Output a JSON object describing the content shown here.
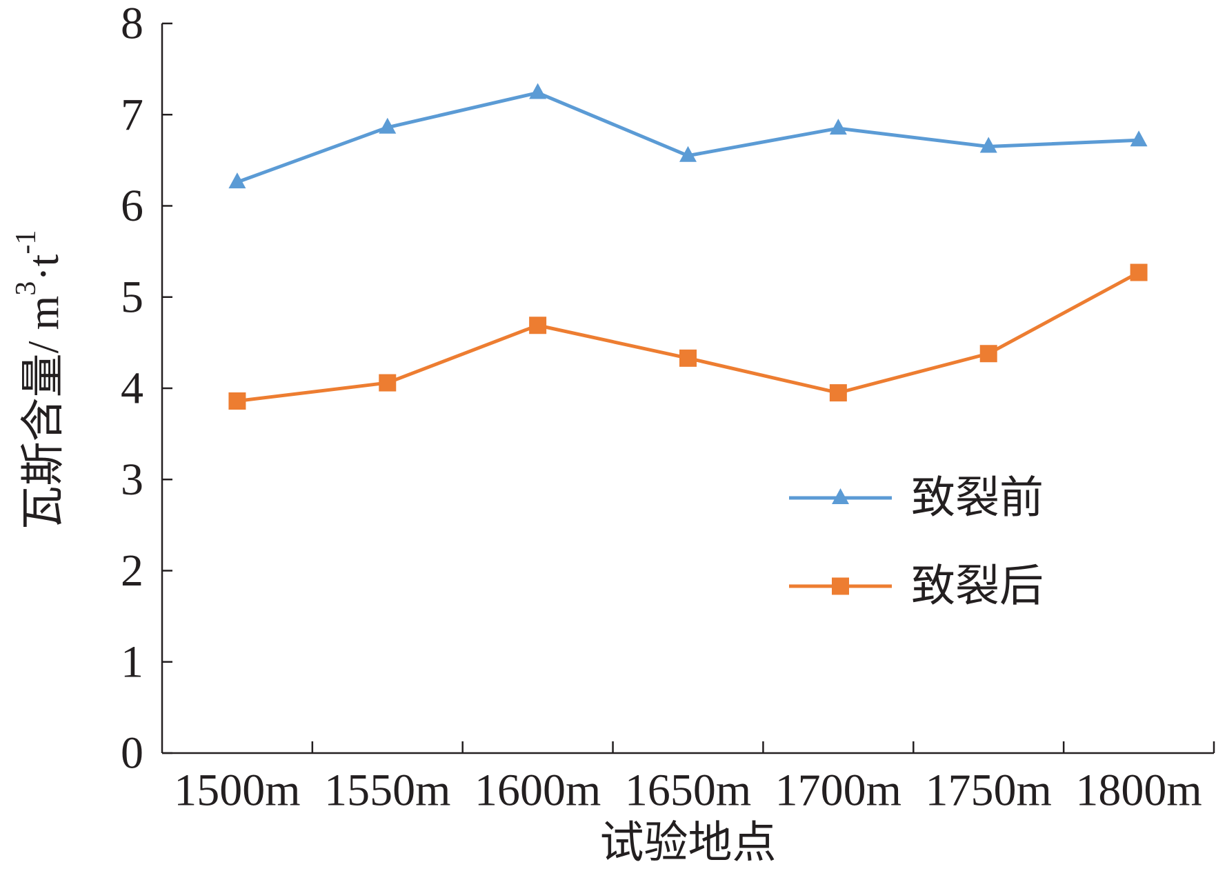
{
  "chart_data": {
    "type": "line",
    "categories": [
      "1500m",
      "1550m",
      "1600m",
      "1650m",
      "1700m",
      "1750m",
      "1800m"
    ],
    "series": [
      {
        "name": "致裂前",
        "values": [
          6.26,
          6.86,
          7.24,
          6.55,
          6.85,
          6.65,
          6.72
        ],
        "color": "#5B9BD5",
        "marker": "triangle"
      },
      {
        "name": "致裂后",
        "values": [
          3.86,
          4.06,
          4.69,
          4.33,
          3.95,
          4.38,
          5.27
        ],
        "color": "#ED7D31",
        "marker": "square"
      }
    ],
    "xlabel": "试验地点",
    "ylabel_parts": [
      {
        "text": "瓦斯含量/ m",
        "sup": false
      },
      {
        "text": "3",
        "sup": true
      },
      {
        "text": "·t",
        "sup": false
      },
      {
        "text": "-1",
        "sup": true
      }
    ],
    "ylim": [
      0,
      8
    ],
    "yticks": [
      0,
      1,
      2,
      3,
      4,
      5,
      6,
      7,
      8
    ],
    "grid": false,
    "legend_position": "right"
  }
}
